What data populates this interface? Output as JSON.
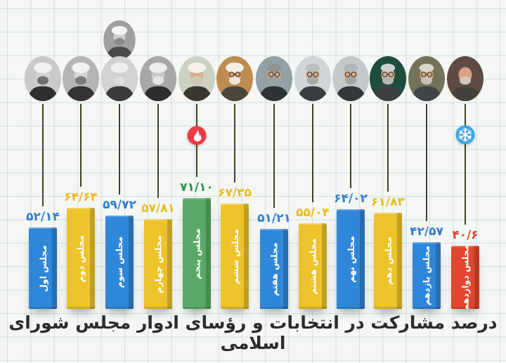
{
  "title": "درصد مشارکت در انتخابات و رؤسای ادوار مجلس شورای اسلامی",
  "chart_data": {
    "type": "bar",
    "title": "درصد مشارکت در انتخابات و رؤسای ادوار مجلس شورای اسلامی",
    "unit": "percent",
    "ylim": [
      0,
      75
    ],
    "grid": "graph-paper-background",
    "categories": [
      "مجلس اول",
      "مجلس دوم",
      "مجلس سوم",
      "مجلس چهارم",
      "مجلس پنجم",
      "مجلس ششم",
      "مجلس هفتم",
      "مجلس هشتم",
      "مجلس نهم",
      "مجلس دهم",
      "مجلس یازدهم",
      "مجلس دوازدهم"
    ],
    "values": [
      52.14,
      64.64,
      59.72,
      57.81,
      71.1,
      67.35,
      51.21,
      55.04,
      64.02,
      61.83,
      42.57,
      40.6
    ],
    "value_labels": [
      "۵۲/۱۴",
      "۶۴/۶۴",
      "۵۹/۷۲",
      "۵۷/۸۱",
      "۷۱/۱۰",
      "۶۷/۳۵",
      "۵۱/۲۱",
      "۵۵/۰۴",
      "۶۴/۰۲",
      "۶۱/۸۳",
      "۴۲/۵۷",
      "۴۰/۶"
    ],
    "bar_colors": [
      "#2f87d9",
      "#ecc32b",
      "#2f87d9",
      "#ecc32b",
      "#5aa865",
      "#ecc32b",
      "#2f87d9",
      "#ecc32b",
      "#2f87d9",
      "#ecc32b",
      "#2f87d9",
      "#e2462e"
    ],
    "annotations": [
      {
        "target_category": "مجلس پنجم",
        "icon": "flame",
        "badge_color": "#ee3b46"
      },
      {
        "target_category": "مجلس دوازدهم",
        "icon": "snowflake",
        "badge_color": "#3aa9e2"
      }
    ]
  },
  "badges": {
    "flame": {
      "bg": "#ee3b46",
      "glyph_color": "#ffffff"
    },
    "snowflake": {
      "bg": "#3aa9e2",
      "glyph_color": "#ffffff"
    }
  },
  "colors": {
    "connector_line": "#3f431f",
    "title_text": "#2c2c2c",
    "grid_line": "#cfe0e6",
    "paper": "#f5f7f4"
  },
  "extra_portrait": {
    "attached_to_column": 3,
    "portrait": {
      "bg": "#9f9f9f",
      "skin": "#cfcfcf",
      "headgear": "turban",
      "headgear_color": "#f5f5f5",
      "beard": "#8a8a8a",
      "suit": "#4a4a4a",
      "glasses": false
    }
  },
  "columns": [
    {
      "label": "مجلس اول",
      "value": 52.14,
      "value_label": "۵۲/۱۴",
      "color": "#2f87d9",
      "value_color": "#2e7fd0",
      "portrait": {
        "bg": "#c9c9c9",
        "skin": "#d3d3d3",
        "headgear": "turban",
        "headgear_color": "#f0f0f0",
        "beard": "#6e6e6e",
        "suit": "#2f2f2f",
        "glasses": false
      }
    },
    {
      "label": "مجلس دوم",
      "value": 64.64,
      "value_label": "۶۴/۶۴",
      "color": "#ecc32b",
      "value_color": "#e9bb20",
      "portrait": {
        "bg": "#b5b5b5",
        "skin": "#d6d6d6",
        "headgear": "turban",
        "headgear_color": "#f2f2f2",
        "beard": "#7a7a7a",
        "suit": "#333333",
        "glasses": false
      }
    },
    {
      "label": "مجلس سوم",
      "value": 59.72,
      "value_label": "۵۹/۷۲",
      "color": "#2f87d9",
      "value_color": "#2e7fd0",
      "portrait": {
        "bg": "#d2d2d2",
        "skin": "#cfcfcf",
        "headgear": "turban",
        "headgear_color": "#efefef",
        "beard": "#dedede",
        "suit": "#3a3a3a",
        "glasses": false
      }
    },
    {
      "label": "مجلس چهارم",
      "value": 57.81,
      "value_label": "۵۷/۸۱",
      "color": "#ecc32b",
      "value_color": "#e9bb20",
      "portrait": {
        "bg": "#a8a8a8",
        "skin": "#c8c8c8",
        "headgear": "turban",
        "headgear_color": "#ededed",
        "beard": "#e6e6e6",
        "suit": "#2d2d2d",
        "glasses": false
      }
    },
    {
      "label": "مجلس پنجم",
      "value": 71.1,
      "value_label": "۷۱/۱۰",
      "color": "#5aa865",
      "value_color": "#2f9447",
      "portrait": {
        "bg": "#ccd2c3",
        "skin": "#d8b190",
        "headgear": "turban",
        "headgear_color": "#f3f1ea",
        "beard": "#cfc8b8",
        "suit": "#3b372f",
        "glasses": false
      }
    },
    {
      "label": "مجلس ششم",
      "value": 67.35,
      "value_label": "۶۷/۳۵",
      "color": "#ecc32b",
      "value_color": "#e9bb20",
      "portrait": {
        "bg": "#bd8d50",
        "skin": "#d9a06b",
        "headgear": "turban",
        "headgear_color": "#f2efe6",
        "beard": "#ece6da",
        "suit": "#4b453c",
        "glasses": true
      }
    },
    {
      "label": "مجلس هفتم",
      "value": 51.21,
      "value_label": "۵۱/۲۱",
      "color": "#2f87d9",
      "value_color": "#2e7fd0",
      "portrait": {
        "bg": "#93a0a4",
        "skin": "#d6ab85",
        "headgear": "hair",
        "headgear_color": "#8d9494",
        "beard": "#9aa0a0",
        "suit": "#2e3338",
        "glasses": true
      }
    },
    {
      "label": "مجلس هشتم",
      "value": 55.04,
      "value_label": "۵۵/۰۴",
      "color": "#ecc32b",
      "value_color": "#e9bb20",
      "portrait": {
        "bg": "#cfd5d8",
        "skin": "#dab494",
        "headgear": "hair",
        "headgear_color": "#b9bdbf",
        "beard": "#a9aaa5",
        "suit": "#3a3e41",
        "glasses": true
      }
    },
    {
      "label": "مجلس نهم",
      "value": 64.02,
      "value_label": "۶۴/۰۲",
      "color": "#2f87d9",
      "value_color": "#2e7fd0",
      "portrait": {
        "bg": "#c3c9cd",
        "skin": "#d8b191",
        "headgear": "hair",
        "headgear_color": "#b3b7b9",
        "beard": "#a5a6a1",
        "suit": "#34383b",
        "glasses": true
      }
    },
    {
      "label": "مجلس دهم",
      "value": 61.83,
      "value_label": "۶۱/۸۳",
      "color": "#ecc32b",
      "value_color": "#e9bb20",
      "portrait": {
        "bg": "#1f4d3c",
        "skin": "#d8b191",
        "headgear": "hair",
        "headgear_color": "#cdd0d2",
        "beard": "#b5b6b1",
        "suit": "#3c4043",
        "glasses": true
      }
    },
    {
      "label": "مجلس یازدهم",
      "value": 42.57,
      "value_label": "۴۲/۵۷",
      "color": "#2f87d9",
      "value_color": "#2e7fd0",
      "portrait": {
        "bg": "#74735a",
        "skin": "#d6a87e",
        "headgear": "hair",
        "headgear_color": "#d8d6cd",
        "beard": "#c6c2b4",
        "suit": "#41454a",
        "glasses": true
      }
    },
    {
      "label": "مجلس دوازدهم",
      "value": 40.6,
      "value_label": "۴۰/۶",
      "color": "#e2462e",
      "value_color": "#e2402c",
      "portrait": {
        "bg": "#5f4b42",
        "skin": "#d9a184",
        "headgear": "bald",
        "headgear_color": "#d9a184",
        "beard": "#cfc9bd",
        "suit": "#46413c",
        "glasses": false
      }
    }
  ]
}
